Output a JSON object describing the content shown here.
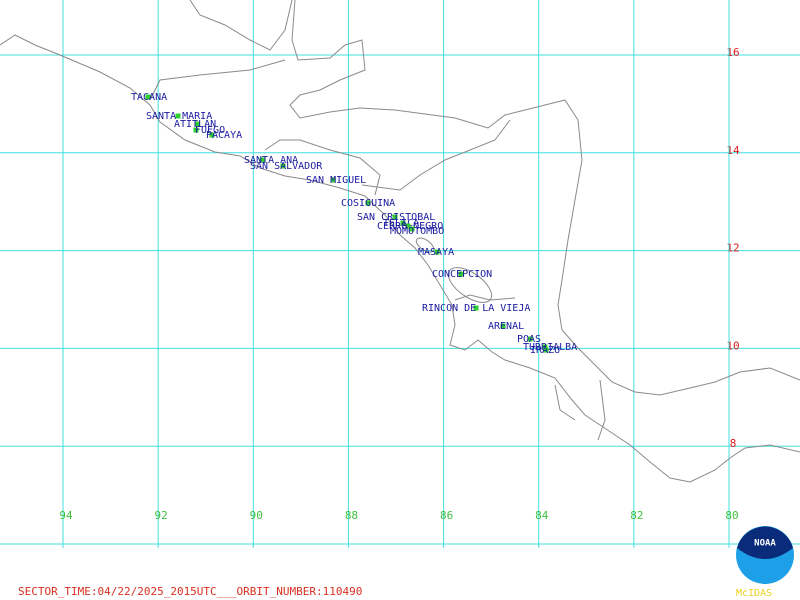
{
  "map": {
    "latitude_labels": [
      16,
      14,
      12,
      10,
      8
    ],
    "longitude_labels": [
      94,
      92,
      90,
      88,
      86,
      84,
      82,
      80
    ],
    "volcanoes": [
      "TACANA",
      "SANTA MARIA",
      "ATITLAN",
      "FUEGO",
      "PACAYA",
      "SANTA ANA",
      "SAN SALVADOR",
      "SAN MIGUEL",
      "COSIGUINA",
      "SAN CRISTOBAL",
      "TELICA",
      "CERRO NEGRO",
      "MOMOTOMBO",
      "MASAYA",
      "CONCEPCION",
      "RINCON DE LA VIEJA",
      "ARENAL",
      "POAS",
      "TURRIALBA",
      "IRAZU"
    ],
    "footer": "SECTOR_TIME:04/22/2025_2015UTC___ORBIT_NUMBER:110490",
    "logo": {
      "emblem": "NOAA",
      "caption": "McIDAS"
    }
  }
}
